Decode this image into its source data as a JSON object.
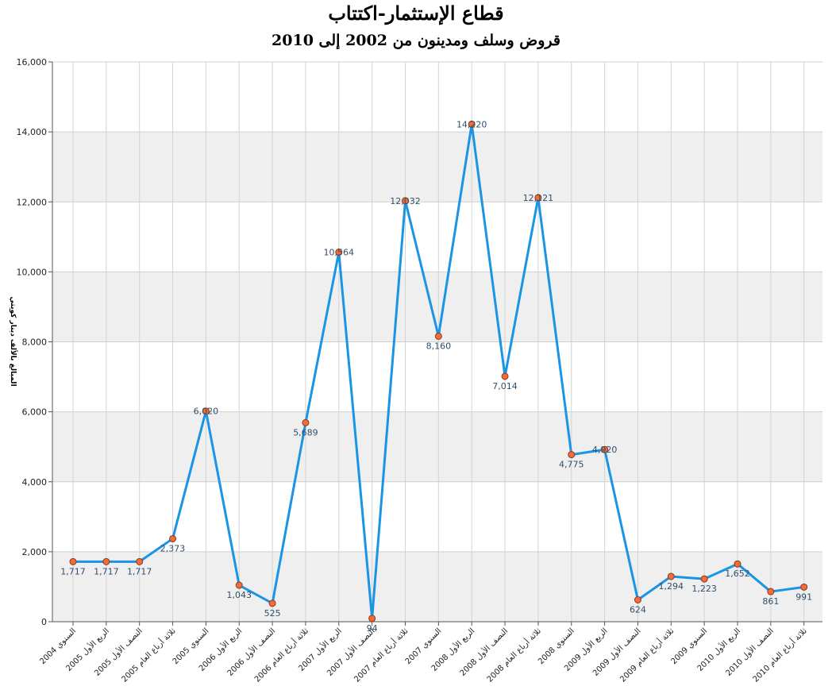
{
  "chart_data": {
    "type": "line",
    "title": "قطاع الإستثمار-اكتتاب",
    "subtitle": "قروض وسلف ومدينون من 2002 إلى 2010",
    "ylabel": "المبالغ بالألف دينار كويتي",
    "xlabel": "",
    "ylim": [
      0,
      16000
    ],
    "yticks": [
      "0",
      "2,000",
      "4,000",
      "6,000",
      "8,000",
      "10,000",
      "12,000",
      "14,000",
      "16,000"
    ],
    "grid": true,
    "line_color": "#1a94e6",
    "marker_color": "#f26b3a",
    "band_color": "#efefef",
    "categories": [
      "السنوي 2004",
      "الربع الأول 2005",
      "النصف الأول 2005",
      "ثلاثة أرباع العام 2005",
      "السنوي 2005",
      "الربع الأول 2006",
      "النصف الأول 2006",
      "ثلاثة أرباع العام 2006",
      "الربع الأول 2007",
      "النصف الأول 2007",
      "ثلاثة أرباع العام 2007",
      "السنوي 2007",
      "الربع الأول 2008",
      "النصف الأول 2008",
      "ثلاثة أرباع العام 2008",
      "السنوي 2008",
      "الربع الأول 2009",
      "النصف الأول 2009",
      "ثلاثة أرباع العام 2009",
      "السنوي 2009",
      "الربع الأول 2010",
      "النصف الأول 2010",
      "ثلاثة أرباع العام 2010"
    ],
    "values": [
      1717,
      1717,
      1717,
      2373,
      6020,
      1043,
      525,
      5689,
      10564,
      94,
      12032,
      8160,
      14220,
      7014,
      12121,
      4775,
      4920,
      624,
      1294,
      1223,
      1652,
      861,
      991
    ],
    "labels": [
      "1,717",
      "1,717",
      "1,717",
      "2,373",
      "6,020",
      "1,043",
      "525",
      "5,689",
      "10,564",
      "94",
      "12,032",
      "8,160",
      "14,220",
      "7,014",
      "12,121",
      "4,775",
      "4,920",
      "624",
      "1,294",
      "1,223",
      "1,652",
      "861",
      "991"
    ]
  }
}
